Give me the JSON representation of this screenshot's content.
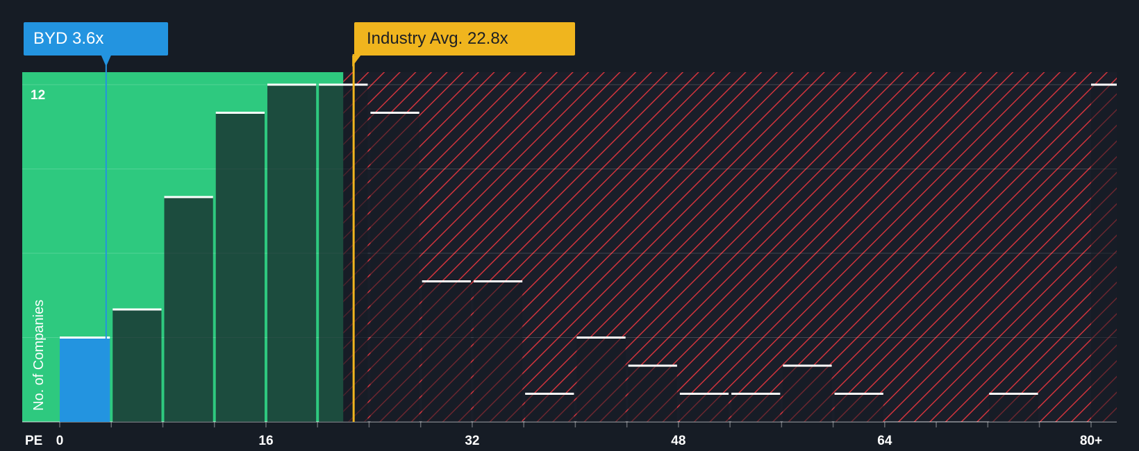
{
  "company_label": "BYD 3.6x",
  "industry_label": "Industry Avg. 22.8x",
  "colors": {
    "background": "#161c25",
    "fair_zone": "#2ec97f",
    "overvalued_hatch": "#d2343d",
    "company": "#2394e0",
    "industry": "#f0b51e"
  },
  "chart_data": {
    "type": "bar",
    "title": "",
    "xlabel": "PE",
    "ylabel": "No. of Companies",
    "bin_width": 4,
    "bins_start": [
      0,
      4,
      8,
      12,
      16,
      20,
      24,
      28,
      32,
      36,
      40,
      44,
      48,
      52,
      56,
      60,
      64,
      68,
      72,
      76,
      80
    ],
    "values": [
      3,
      4,
      8,
      11,
      12,
      12,
      11,
      5,
      5,
      1,
      3,
      2,
      1,
      1,
      2,
      1,
      0,
      0,
      1,
      0,
      12
    ],
    "x_ticks": [
      "0",
      "16",
      "32",
      "48",
      "64",
      "80+"
    ],
    "y_ticks": [
      "12"
    ],
    "ylim": [
      0,
      12.5
    ],
    "company_pe": 3.6,
    "industry_avg_pe": 22.8,
    "fair_zone_upper_pe": 22.0,
    "legend": "none",
    "grid": true
  }
}
